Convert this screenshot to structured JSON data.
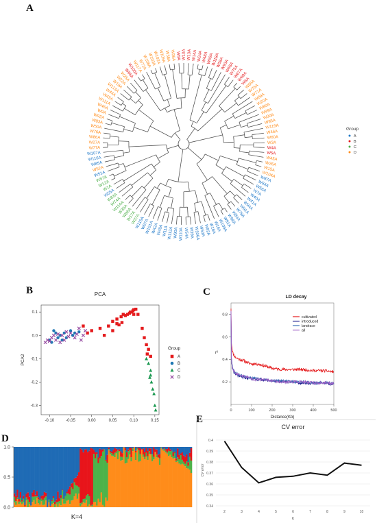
{
  "panel_labels": {
    "a": "A",
    "b": "B",
    "c": "C",
    "d": "D",
    "e": "E"
  },
  "chart_data": [
    {
      "panel": "A",
      "type": "dendrogram",
      "legend": {
        "title": "Group",
        "placement": "right",
        "entries": [
          {
            "name": "A",
            "color": "#1f78c8"
          },
          {
            "name": "B",
            "color": "#e41a1c"
          },
          {
            "name": "C",
            "color": "#4daf4a"
          },
          {
            "name": "D",
            "color": "#ff8c1a"
          }
        ]
      },
      "leaves": [
        {
          "label": "W24A",
          "group": "B"
        },
        {
          "label": "W48A",
          "group": "B"
        },
        {
          "label": "W59A",
          "group": "B"
        },
        {
          "label": "W118A",
          "group": "B"
        },
        {
          "label": "W58A",
          "group": "B"
        },
        {
          "label": "W93A",
          "group": "B"
        },
        {
          "label": "W68A",
          "group": "B"
        },
        {
          "label": "W75A",
          "group": "B"
        },
        {
          "label": "W67A",
          "group": "B"
        },
        {
          "label": "W69A",
          "group": "B"
        },
        {
          "label": "W6A",
          "group": "B"
        },
        {
          "label": "W65A",
          "group": "D"
        },
        {
          "label": "W76A",
          "group": "D"
        },
        {
          "label": "W71A",
          "group": "D"
        },
        {
          "label": "W89A",
          "group": "D"
        },
        {
          "label": "W20A",
          "group": "D"
        },
        {
          "label": "W80A",
          "group": "D"
        },
        {
          "label": "W99A",
          "group": "D"
        },
        {
          "label": "W30A",
          "group": "D"
        },
        {
          "label": "W95A",
          "group": "D"
        },
        {
          "label": "W119A",
          "group": "D"
        },
        {
          "label": "W46A",
          "group": "D"
        },
        {
          "label": "W60A",
          "group": "D"
        },
        {
          "label": "W3A",
          "group": "D"
        },
        {
          "label": "W4A",
          "group": "B"
        },
        {
          "label": "W5A",
          "group": "B"
        },
        {
          "label": "W45A",
          "group": "D"
        },
        {
          "label": "W26A",
          "group": "D"
        },
        {
          "label": "W15A",
          "group": "D"
        },
        {
          "label": "W104A",
          "group": "D"
        },
        {
          "label": "W87A",
          "group": "A"
        },
        {
          "label": "W64A",
          "group": "A"
        },
        {
          "label": "W56A",
          "group": "A"
        },
        {
          "label": "W7A",
          "group": "A"
        },
        {
          "label": "W40A",
          "group": "A"
        },
        {
          "label": "W41A",
          "group": "A"
        },
        {
          "label": "W94A",
          "group": "A"
        },
        {
          "label": "W91A",
          "group": "A"
        },
        {
          "label": "W78A",
          "group": "A"
        },
        {
          "label": "W84A",
          "group": "A"
        },
        {
          "label": "W98A",
          "group": "A"
        },
        {
          "label": "W81A",
          "group": "A"
        },
        {
          "label": "W109A",
          "group": "A"
        },
        {
          "label": "W16A",
          "group": "A"
        },
        {
          "label": "W18A",
          "group": "A"
        },
        {
          "label": "W82A",
          "group": "A"
        },
        {
          "label": "W63A",
          "group": "A"
        },
        {
          "label": "W106A",
          "group": "A"
        },
        {
          "label": "W39A",
          "group": "A"
        },
        {
          "label": "W54A",
          "group": "A"
        },
        {
          "label": "W110A",
          "group": "A"
        },
        {
          "label": "W90A",
          "group": "A"
        },
        {
          "label": "W112A",
          "group": "A"
        },
        {
          "label": "W11A",
          "group": "A"
        },
        {
          "label": "W49A",
          "group": "A"
        },
        {
          "label": "W42A",
          "group": "A"
        },
        {
          "label": "W101A",
          "group": "A"
        },
        {
          "label": "W97A",
          "group": "A"
        },
        {
          "label": "W115A",
          "group": "A"
        },
        {
          "label": "W37A",
          "group": "C"
        },
        {
          "label": "W17A",
          "group": "C"
        },
        {
          "label": "W88A",
          "group": "C"
        },
        {
          "label": "W35A",
          "group": "C"
        },
        {
          "label": "W114A",
          "group": "C"
        },
        {
          "label": "W74A",
          "group": "C"
        },
        {
          "label": "W83A",
          "group": "C"
        },
        {
          "label": "W55A",
          "group": "A"
        },
        {
          "label": "W1A",
          "group": "C"
        },
        {
          "label": "W12A",
          "group": "C"
        },
        {
          "label": "W57A",
          "group": "C"
        },
        {
          "label": "W51A",
          "group": "A"
        },
        {
          "label": "W52A",
          "group": "D"
        },
        {
          "label": "W85A",
          "group": "A"
        },
        {
          "label": "W116A",
          "group": "A"
        },
        {
          "label": "W107A",
          "group": "A"
        },
        {
          "label": "W77A",
          "group": "D"
        },
        {
          "label": "W27A",
          "group": "D"
        },
        {
          "label": "W86A",
          "group": "D"
        },
        {
          "label": "W76A",
          "group": "D"
        },
        {
          "label": "W50A",
          "group": "D"
        },
        {
          "label": "W83A",
          "group": "D"
        },
        {
          "label": "W92A",
          "group": "D"
        },
        {
          "label": "W9A",
          "group": "D"
        },
        {
          "label": "W46A",
          "group": "D"
        },
        {
          "label": "W111A",
          "group": "D"
        },
        {
          "label": "W43A",
          "group": "D"
        },
        {
          "label": "W44A",
          "group": "D"
        },
        {
          "label": "W113A",
          "group": "D"
        },
        {
          "label": "W19A",
          "group": "D"
        },
        {
          "label": "W22A",
          "group": "D"
        },
        {
          "label": "W25A",
          "group": "D"
        },
        {
          "label": "W66A",
          "group": "B"
        },
        {
          "label": "W100A",
          "group": "B"
        },
        {
          "label": "W117A",
          "group": "D"
        },
        {
          "label": "W72A",
          "group": "D"
        },
        {
          "label": "W108A",
          "group": "D"
        },
        {
          "label": "W103A",
          "group": "D"
        },
        {
          "label": "W102A",
          "group": "D"
        },
        {
          "label": "W105A",
          "group": "D"
        },
        {
          "label": "W38A",
          "group": "D"
        },
        {
          "label": "W36A",
          "group": "D"
        },
        {
          "label": "W8A",
          "group": "B"
        },
        {
          "label": "W10A",
          "group": "B"
        },
        {
          "label": "W13A",
          "group": "B"
        },
        {
          "label": "W14A",
          "group": "B"
        }
      ]
    },
    {
      "panel": "B",
      "type": "scatter",
      "title": "PCA",
      "xlabel": "PCA1",
      "ylabel": "PCA2",
      "xlim": [
        -0.12,
        0.16
      ],
      "ylim": [
        -0.34,
        0.13
      ],
      "xticks": [
        "-0.10",
        "-0.05",
        "0.00",
        "0.05",
        "0.10",
        "0.15"
      ],
      "xtick_values": [
        -0.1,
        -0.05,
        0.0,
        0.05,
        0.1,
        0.15
      ],
      "yticks": [
        "0.1",
        "0.0",
        "-0.1",
        "-0.2",
        "-0.3"
      ],
      "ytick_values": [
        0.1,
        0.0,
        -0.1,
        -0.2,
        -0.3
      ],
      "legend": {
        "title": "Group",
        "placement": "right",
        "entries": [
          {
            "name": "A",
            "color": "#e41a1c",
            "shape": "square"
          },
          {
            "name": "B",
            "color": "#1f78b4",
            "shape": "circle"
          },
          {
            "name": "C",
            "color": "#1a9850",
            "shape": "triangle"
          },
          {
            "name": "D",
            "color": "#984ea3",
            "shape": "cross"
          }
        ]
      },
      "series": [
        {
          "name": "A",
          "points": [
            [
              0.1,
              0.11
            ],
            [
              0.098,
              0.105
            ],
            [
              0.105,
              0.112
            ],
            [
              0.095,
              0.1
            ],
            [
              0.09,
              0.095
            ],
            [
              0.085,
              0.09
            ],
            [
              0.08,
              0.085
            ],
            [
              0.075,
              0.09
            ],
            [
              0.07,
              0.08
            ],
            [
              0.06,
              0.07
            ],
            [
              0.06,
              0.05
            ],
            [
              0.05,
              0.06
            ],
            [
              0.04,
              0.04
            ],
            [
              0.02,
              0.03
            ],
            [
              0.0,
              0.02
            ],
            [
              -0.02,
              0.04
            ],
            [
              0.03,
              0.0
            ],
            [
              0.05,
              0.02
            ],
            [
              0.065,
              0.045
            ],
            [
              0.072,
              0.055
            ],
            [
              0.11,
              0.09
            ],
            [
              0.12,
              0.03
            ],
            [
              0.125,
              -0.01
            ],
            [
              0.13,
              -0.04
            ],
            [
              0.135,
              -0.06
            ],
            [
              0.132,
              -0.08
            ],
            [
              0.14,
              -0.09
            ],
            [
              0.092,
              0.1
            ],
            [
              0.1,
              0.09
            ],
            [
              -0.01,
              0.01
            ]
          ]
        },
        {
          "name": "B",
          "points": [
            [
              -0.09,
              0.02
            ],
            [
              -0.085,
              0.01
            ],
            [
              -0.08,
              -0.01
            ],
            [
              -0.075,
              0.0
            ],
            [
              -0.07,
              -0.02
            ],
            [
              -0.1,
              -0.02
            ],
            [
              -0.095,
              -0.03
            ],
            [
              -0.065,
              0.01
            ],
            [
              -0.06,
              -0.01
            ],
            [
              -0.05,
              0.02
            ],
            [
              -0.045,
              0.0
            ],
            [
              -0.04,
              0.01
            ],
            [
              -0.03,
              0.015
            ]
          ]
        },
        {
          "name": "C",
          "points": [
            [
              0.135,
              -0.12
            ],
            [
              0.14,
              -0.15
            ],
            [
              0.138,
              -0.18
            ],
            [
              0.142,
              -0.2
            ],
            [
              0.145,
              -0.23
            ],
            [
              0.148,
              -0.25
            ],
            [
              0.15,
              -0.3
            ],
            [
              0.152,
              -0.32
            ],
            [
              0.13,
              -0.1
            ],
            [
              0.14,
              -0.17
            ]
          ]
        },
        {
          "name": "D",
          "points": [
            [
              -0.11,
              -0.03
            ],
            [
              -0.105,
              -0.02
            ],
            [
              -0.1,
              -0.025
            ],
            [
              -0.095,
              -0.01
            ],
            [
              -0.09,
              0.0
            ],
            [
              -0.085,
              -0.02
            ],
            [
              -0.08,
              0.005
            ],
            [
              -0.075,
              -0.03
            ],
            [
              -0.07,
              0.0
            ],
            [
              -0.065,
              -0.02
            ],
            [
              -0.06,
              0.015
            ],
            [
              -0.055,
              -0.005
            ],
            [
              -0.05,
              0.01
            ],
            [
              -0.04,
              -0.01
            ],
            [
              -0.035,
              0.005
            ],
            [
              -0.025,
              -0.02
            ],
            [
              -0.02,
              0.0
            ],
            [
              -0.015,
              0.02
            ],
            [
              -0.03,
              0.03
            ]
          ]
        }
      ]
    },
    {
      "panel": "C",
      "type": "line",
      "title": "LD decay",
      "xlabel": "Distance(Kb)",
      "ylabel": "r²",
      "xlim": [
        0,
        500
      ],
      "ylim": [
        0,
        0.9
      ],
      "xticks": [
        "0",
        "100",
        "200",
        "300",
        "400",
        "500"
      ],
      "xtick_values": [
        0,
        100,
        200,
        300,
        400,
        500
      ],
      "yticks": [
        "0.2",
        "0.4",
        "0.6",
        "0.8"
      ],
      "ytick_values": [
        0.2,
        0.4,
        0.6,
        0.8
      ],
      "legend": {
        "placement": "top-right"
      },
      "x": [
        0,
        2,
        5,
        10,
        20,
        40,
        60,
        80,
        100,
        120,
        150,
        200,
        250,
        300,
        350,
        400,
        450,
        500
      ],
      "series": [
        {
          "name": "cultivated",
          "color": "#e41a1c",
          "values": [
            0.85,
            0.55,
            0.5,
            0.45,
            0.42,
            0.4,
            0.39,
            0.37,
            0.36,
            0.36,
            0.35,
            0.32,
            0.31,
            0.31,
            0.31,
            0.3,
            0.3,
            0.29
          ]
        },
        {
          "name": "introduced",
          "color": "#1f1f8f",
          "values": [
            0.8,
            0.4,
            0.34,
            0.3,
            0.27,
            0.25,
            0.24,
            0.23,
            0.23,
            0.22,
            0.22,
            0.21,
            0.2,
            0.2,
            0.19,
            0.19,
            0.19,
            0.18
          ]
        },
        {
          "name": "landrace",
          "color": "#3b6fb6",
          "values": [
            0.82,
            0.42,
            0.35,
            0.31,
            0.28,
            0.26,
            0.25,
            0.24,
            0.23,
            0.23,
            0.22,
            0.21,
            0.21,
            0.2,
            0.2,
            0.19,
            0.19,
            0.19
          ]
        },
        {
          "name": "all",
          "color": "#9c5fc4",
          "values": [
            0.83,
            0.41,
            0.35,
            0.31,
            0.28,
            0.26,
            0.25,
            0.24,
            0.23,
            0.22,
            0.22,
            0.21,
            0.2,
            0.2,
            0.2,
            0.19,
            0.19,
            0.19
          ]
        }
      ]
    },
    {
      "panel": "D",
      "type": "stacked-bar",
      "caption": "K=4",
      "ylim": [
        0,
        1
      ],
      "yticks": [
        "0.0",
        "0.5",
        "1.0"
      ],
      "ytick_values": [
        0,
        0.5,
        1.0
      ],
      "cluster_colors": [
        "#1f6bb5",
        "#e8151b",
        "#4db34a",
        "#ff8c1a"
      ],
      "segments": [
        {
          "dominant": 0,
          "count": 44,
          "label": "blue"
        },
        {
          "dominant": 1,
          "count": 9,
          "label": "red"
        },
        {
          "dominant": 2,
          "count": 10,
          "label": "green"
        },
        {
          "dominant": 3,
          "count": 56,
          "label": "orange"
        }
      ]
    },
    {
      "panel": "E",
      "type": "line",
      "title": "CV error",
      "xlabel": "K",
      "ylabel": "CV error",
      "xlim": [
        1.5,
        10.5
      ],
      "ylim": [
        0.34,
        0.405
      ],
      "xticks": [
        "2",
        "3",
        "4",
        "5",
        "6",
        "7",
        "8",
        "9",
        "10"
      ],
      "xtick_values": [
        2,
        3,
        4,
        5,
        6,
        7,
        8,
        9,
        10
      ],
      "yticks": [
        "0.4",
        "0.39",
        "0.38",
        "0.37",
        "0.36",
        "0.35",
        "0.34"
      ],
      "ytick_values": [
        0.4,
        0.39,
        0.38,
        0.37,
        0.36,
        0.35,
        0.34
      ],
      "x": [
        2,
        3,
        4,
        5,
        6,
        7,
        8,
        9,
        10
      ],
      "values": [
        0.399,
        0.375,
        0.361,
        0.366,
        0.367,
        0.37,
        0.368,
        0.379,
        0.377
      ]
    }
  ]
}
